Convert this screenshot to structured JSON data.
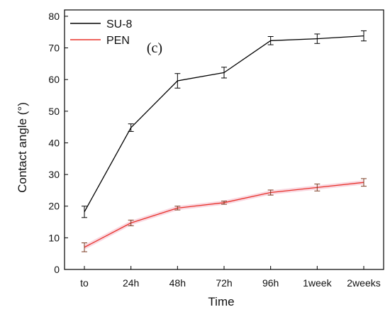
{
  "chart_data": {
    "type": "line",
    "panel_label": "(c)",
    "xlabel": "Time",
    "ylabel": "Contact angle (°)",
    "categories": [
      "to",
      "24h",
      "48h",
      "72h",
      "96h",
      "1week",
      "2weeks"
    ],
    "ylim": [
      0,
      82
    ],
    "yticks": [
      0,
      10,
      20,
      30,
      40,
      50,
      60,
      70,
      80
    ],
    "legend_position": "top-left",
    "grid": false,
    "series": [
      {
        "name": "SU-8",
        "color": "#000000",
        "values": [
          18.2,
          44.8,
          59.6,
          62.2,
          72.3,
          72.9,
          73.8
        ],
        "errors": [
          1.8,
          1.2,
          2.3,
          1.7,
          1.3,
          1.5,
          1.6
        ]
      },
      {
        "name": "PEN",
        "color": "#e8322a",
        "values": [
          7.0,
          14.7,
          19.4,
          21.1,
          24.3,
          25.9,
          27.5
        ],
        "errors": [
          1.4,
          0.9,
          0.6,
          0.5,
          0.8,
          1.1,
          1.2
        ]
      }
    ]
  }
}
